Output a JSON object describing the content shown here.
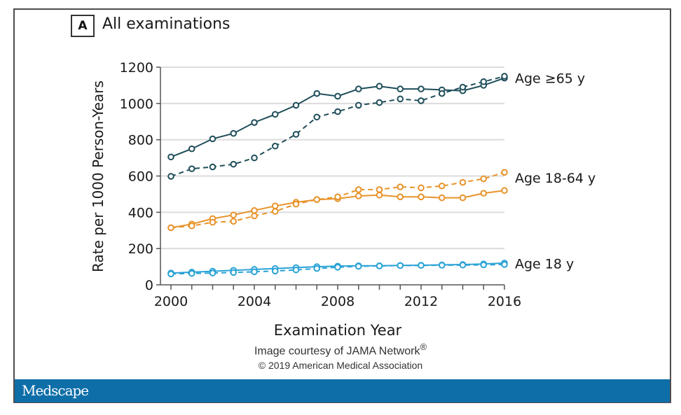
{
  "panel": {
    "label": "A",
    "title": "All examinations"
  },
  "credits": {
    "line1": "Image courtesy of JAMA Network",
    "registered": "®",
    "line2": "© 2019 American Medical Association"
  },
  "footer": {
    "brand": "Medscape",
    "bar_color": "#0e6ea8"
  },
  "chart_data": {
    "type": "line",
    "title": "All examinations",
    "xlabel": "Examination Year",
    "ylabel": "Rate per 1000 Person-Years",
    "xlim": [
      2000,
      2016
    ],
    "ylim": [
      0,
      1200
    ],
    "xticks": [
      2000,
      2004,
      2008,
      2012,
      2016
    ],
    "xminor_step": 1,
    "yticks": [
      0,
      200,
      400,
      600,
      800,
      1000,
      1200
    ],
    "grid": "horizontal",
    "x": [
      2000,
      2001,
      2002,
      2003,
      2004,
      2005,
      2006,
      2007,
      2008,
      2009,
      2010,
      2011,
      2012,
      2013,
      2014,
      2015,
      2016
    ],
    "series": [
      {
        "name": "Age ≥65 y (solid)",
        "group": "Age ≥65 y",
        "style": "solid",
        "color": "#1f4e5a",
        "values": [
          705,
          750,
          805,
          835,
          895,
          940,
          990,
          1055,
          1040,
          1080,
          1095,
          1080,
          1080,
          1075,
          1070,
          1100,
          1140
        ]
      },
      {
        "name": "Age ≥65 y (dashed)",
        "group": "Age ≥65 y",
        "style": "dashed",
        "color": "#1f4e5a",
        "values": [
          598,
          640,
          650,
          665,
          700,
          765,
          830,
          925,
          955,
          990,
          1005,
          1025,
          1015,
          1055,
          1090,
          1120,
          1150
        ]
      },
      {
        "name": "Age 18-64 y (solid)",
        "group": "Age 18-64 y",
        "style": "solid",
        "color": "#e8932a",
        "values": [
          315,
          335,
          365,
          385,
          410,
          435,
          455,
          470,
          475,
          490,
          495,
          485,
          485,
          480,
          480,
          505,
          520
        ]
      },
      {
        "name": "Age 18-64 y (dashed)",
        "group": "Age 18-64 y",
        "style": "dashed",
        "color": "#e8932a",
        "values": [
          315,
          325,
          345,
          350,
          380,
          405,
          445,
          470,
          485,
          525,
          525,
          540,
          535,
          545,
          565,
          585,
          620
        ]
      },
      {
        "name": "Age 18 y (solid)",
        "group": "Age 18 y",
        "style": "solid",
        "color": "#2ba3d6",
        "values": [
          65,
          70,
          75,
          80,
          85,
          90,
          95,
          100,
          103,
          105,
          105,
          107,
          108,
          110,
          112,
          115,
          120
        ]
      },
      {
        "name": "Age 18 y (dashed)",
        "group": "Age 18 y",
        "style": "dashed",
        "color": "#2ba3d6",
        "values": [
          60,
          63,
          65,
          68,
          72,
          76,
          82,
          90,
          97,
          102,
          104,
          106,
          107,
          108,
          109,
          110,
          112
        ]
      }
    ],
    "annotations": [
      {
        "text": "Age ≥65 y",
        "at_value": 1140
      },
      {
        "text": "Age 18-64 y",
        "at_value": 590
      },
      {
        "text": "Age 18 y",
        "at_value": 118
      }
    ]
  }
}
